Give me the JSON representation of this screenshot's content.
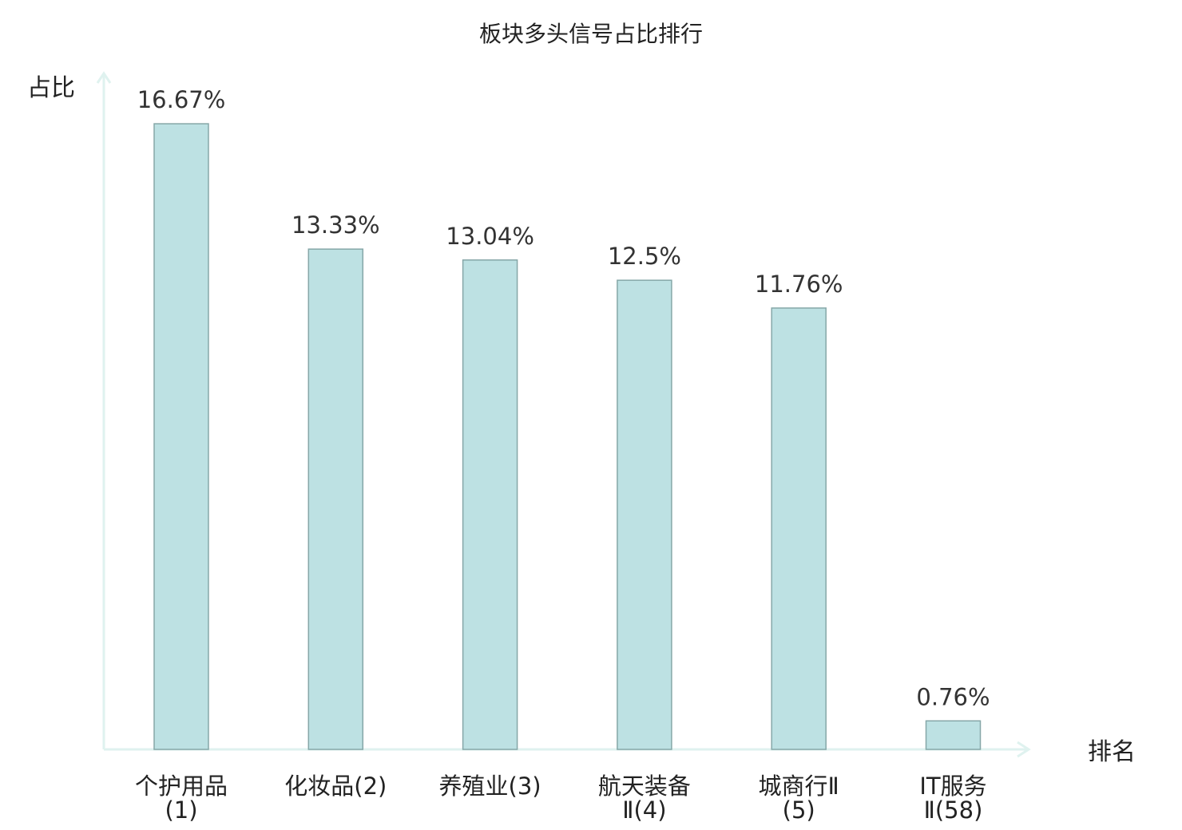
{
  "chart_data": {
    "type": "bar",
    "title": "板块多头信号占比排行",
    "ylabel": "占比",
    "xlabel": "排名",
    "ylim": [
      0,
      18.5
    ],
    "grid": false,
    "categories": [
      {
        "name": "个护用品",
        "rank": "(1)",
        "value": 16.67,
        "label": "16.67%",
        "highlight": false
      },
      {
        "name": "化妆品",
        "rank": "(2)",
        "value": 13.33,
        "label": "13.33%",
        "highlight": false
      },
      {
        "name": "养殖业",
        "rank": "(3)",
        "value": 13.04,
        "label": "13.04%",
        "highlight": false
      },
      {
        "name": "航天装备",
        "rank": "Ⅱ(4)",
        "value": 12.5,
        "label": "12.5%",
        "highlight": false
      },
      {
        "name": "城商行Ⅱ",
        "rank": "(5)",
        "value": 11.76,
        "label": "11.76%",
        "highlight": false
      },
      {
        "name": "IT服务",
        "rank": "Ⅱ(58)",
        "value": 0.76,
        "label": "0.76%",
        "highlight": true
      }
    ],
    "colors": {
      "bar_fill": "#bde1e3",
      "bar_stroke": "#86a7a8",
      "axis": "#dff2ef",
      "highlight_text": "#e8201f",
      "text": "#222222"
    }
  }
}
